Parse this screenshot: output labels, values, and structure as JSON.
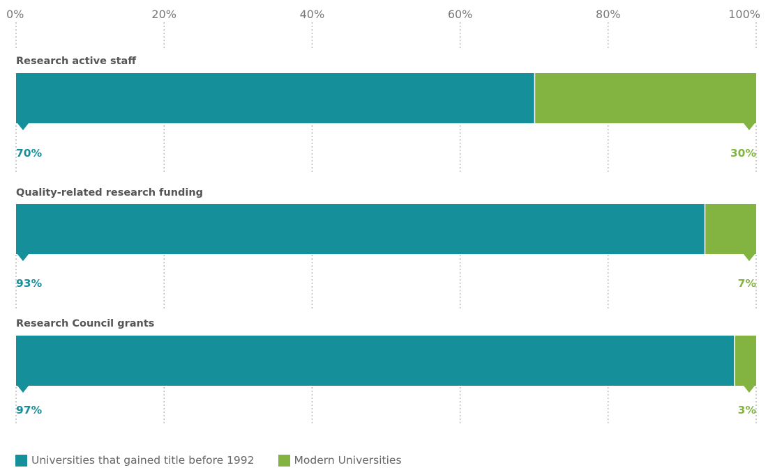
{
  "chart_data": {
    "type": "bar",
    "orientation": "horizontal",
    "stacked": true,
    "categories": [
      "Research active staff",
      "Quality-related research funding",
      "Research Council grants"
    ],
    "series": [
      {
        "name": "Universities that gained title before 1992",
        "color": "#15909a",
        "values": [
          70,
          93,
          97
        ],
        "labels": [
          "70%",
          "93%",
          "97%"
        ]
      },
      {
        "name": "Modern Universities",
        "color": "#83b442",
        "values": [
          30,
          7,
          3
        ],
        "labels": [
          "30%",
          "7%",
          "3%"
        ]
      }
    ],
    "xlim": [
      0,
      100
    ],
    "ticks": [
      "0%",
      "20%",
      "40%",
      "60%",
      "80%",
      "100%"
    ],
    "tick_values": [
      0,
      20,
      40,
      60,
      80,
      100
    ],
    "grid": true,
    "legend_position": "bottom-left"
  }
}
